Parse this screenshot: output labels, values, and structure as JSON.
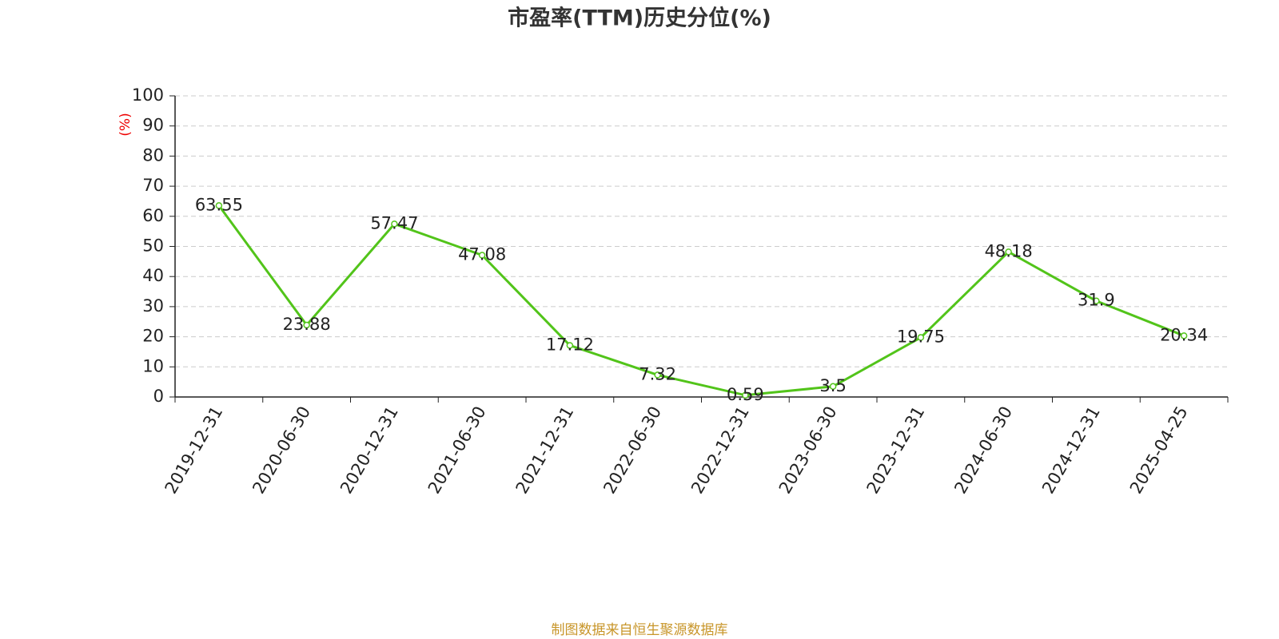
{
  "chart_data": {
    "type": "line",
    "title": "市盈率(TTM)历史分位(%)",
    "y_label": "(%)",
    "categories": [
      "2019-12-31",
      "2020-06-30",
      "2020-12-31",
      "2021-06-30",
      "2021-12-31",
      "2022-06-30",
      "2022-12-31",
      "2023-06-30",
      "2023-12-31",
      "2024-06-30",
      "2024-12-31",
      "2025-04-25"
    ],
    "values": [
      63.55,
      23.88,
      57.47,
      47.08,
      17.12,
      7.32,
      0.59,
      3.5,
      19.75,
      48.18,
      31.9,
      20.34
    ],
    "color": "#52c41a",
    "ylim": [
      0,
      100
    ],
    "yticks": [
      0,
      10,
      20,
      30,
      40,
      50,
      60,
      70,
      80,
      90,
      100
    ],
    "grid": true,
    "source": "制图数据来自恒生聚源数据库"
  }
}
